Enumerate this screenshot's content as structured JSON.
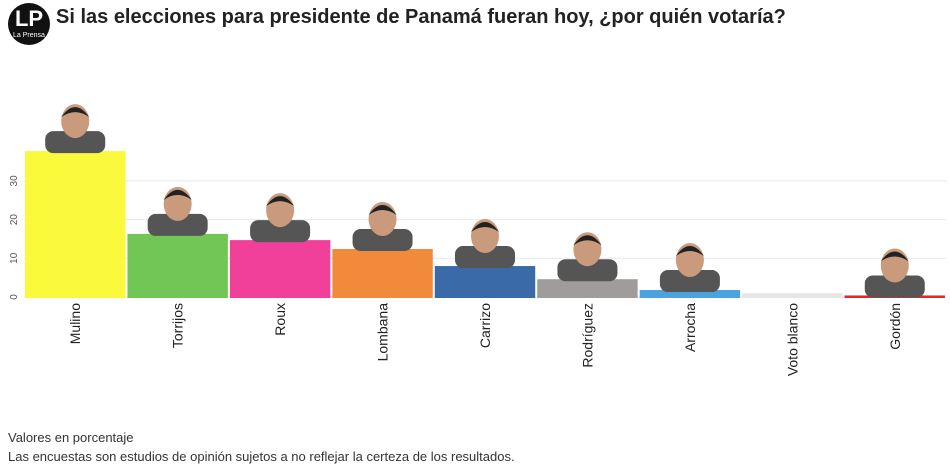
{
  "logo": {
    "initials": "LP",
    "name": "La Prensa"
  },
  "title": "Si las elecciones para presidente de Panamá fueran hoy, ¿por quién votaría?",
  "footnotes": [
    "Valores en porcentaje",
    "Las encuestas son estudios de opinión sujetos a no reflejar la certeza de los resultados."
  ],
  "chart_data": {
    "type": "bar",
    "title": "Si las elecciones para presidente de Panamá fueran hoy, ¿por quién votaría?",
    "categories": [
      "Mulino",
      "Torrijos",
      "Roux",
      "Lombana",
      "Carrizo",
      "Rodríguez",
      "Arrocha",
      "Voto blanco",
      "Gordón"
    ],
    "values": [
      37.7,
      16.3,
      14.7,
      12.4,
      8.0,
      4.6,
      1.8,
      1.0,
      0.4
    ],
    "colors": [
      "#fbf93c",
      "#72c655",
      "#f0409a",
      "#f28a3c",
      "#3a6aa8",
      "#a09c9c",
      "#4aa3de",
      "#e6e6e6",
      "#e02a2a"
    ],
    "has_photo": [
      true,
      true,
      true,
      true,
      true,
      true,
      true,
      false,
      true
    ],
    "yticks": [
      0,
      10,
      20,
      30
    ],
    "ylim": [
      0,
      38
    ],
    "grid": true,
    "unit": "Valores en porcentaje"
  }
}
